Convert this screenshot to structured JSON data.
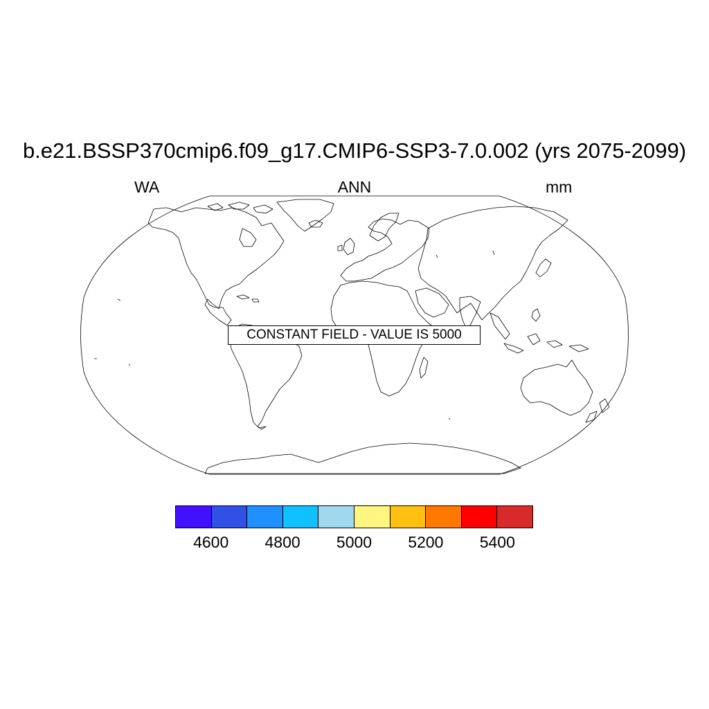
{
  "figure": {
    "title": "b.e21.BSSP370cmip6.f09_g17.CMIP6-SSP3-7.0.002 (yrs 2075-2099)",
    "left_label": "WA",
    "center_label": "ANN",
    "right_label": "mm",
    "note": "CONSTANT FIELD - VALUE IS 5000"
  },
  "map": {
    "projection": "Robinson",
    "field_value": 5000
  },
  "colorbar": {
    "colors": [
      "#4010ff",
      "#3050e6",
      "#2090ff",
      "#10c0ff",
      "#a0d8f0",
      "#fff580",
      "#ffc010",
      "#ff7800",
      "#ff0000",
      "#d82a2a"
    ],
    "boundaries": [
      4500,
      4600,
      4700,
      4800,
      4900,
      5000,
      5100,
      5200,
      5300,
      5400,
      5500
    ],
    "tick_labels": [
      "4600",
      "4800",
      "5000",
      "5200",
      "5400"
    ]
  }
}
